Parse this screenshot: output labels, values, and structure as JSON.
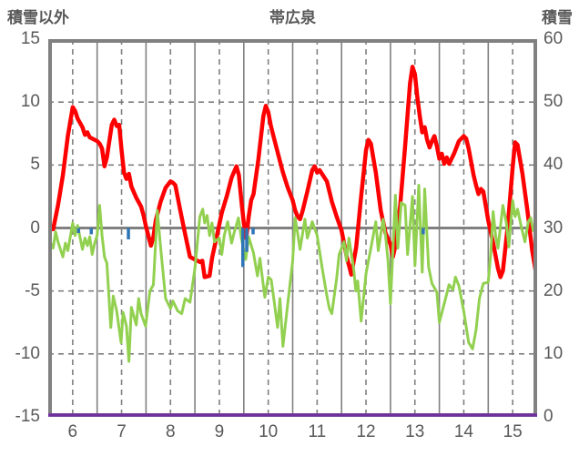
{
  "header": {
    "left_axis_title": "積雪以外",
    "chart_title": "帯広泉",
    "right_axis_title": "積雪"
  },
  "colors": {
    "text": "#595959",
    "grid": "#808080",
    "frame": "#808080",
    "zero_line": "#808080",
    "red_series": "#ff0000",
    "green_series": "#92d050",
    "blue_series": "#2e75b6",
    "purple_series": "#7030a0",
    "background": "#ffffff"
  },
  "chart_data": {
    "type": "line",
    "title": "帯広泉",
    "left_axis": {
      "label": "積雪以外",
      "min": -15,
      "max": 15,
      "ticks": [
        15,
        10,
        5,
        0,
        -5,
        -10,
        -15
      ]
    },
    "right_axis": {
      "label": "積雪",
      "min": 0,
      "max": 60,
      "ticks": [
        60,
        50,
        40,
        30,
        20,
        10,
        0
      ]
    },
    "x_axis": {
      "min": 6,
      "max": 16,
      "tick_labels": [
        "6",
        "7",
        "8",
        "9",
        "10",
        "11",
        "12",
        "13",
        "14",
        "15"
      ],
      "tick_positions": [
        6.5,
        7.5,
        8.5,
        9.5,
        10.5,
        11.5,
        12.5,
        13.5,
        14.5,
        15.5
      ]
    },
    "grid": {
      "vertical_solid_days": [
        7,
        8,
        9,
        10,
        11,
        12,
        13,
        14,
        15
      ],
      "vertical_dashed_days": [
        6.5,
        7.5,
        8.5,
        9.5,
        10.5,
        11.5,
        12.5,
        13.5,
        14.5,
        15.5
      ],
      "horizontal_dashed_values": [
        10,
        5,
        -5,
        -10
      ],
      "zero_line_value": 0,
      "grid_on": true,
      "legend": "none"
    },
    "series": [
      {
        "name": "red-line",
        "style": "line",
        "color": "#ff0000",
        "axis": "left",
        "width": 4.5,
        "points": [
          [
            6.0,
            0.6
          ],
          [
            6.05,
            0.1
          ],
          [
            6.1,
            -0.1
          ],
          [
            6.2,
            1.8
          ],
          [
            6.3,
            4.2
          ],
          [
            6.4,
            7.3
          ],
          [
            6.5,
            9.6
          ],
          [
            6.55,
            9.3
          ],
          [
            6.6,
            8.7
          ],
          [
            6.7,
            8.0
          ],
          [
            6.75,
            7.4
          ],
          [
            6.8,
            7.6
          ],
          [
            6.85,
            7.2
          ],
          [
            6.9,
            7.1
          ],
          [
            7.0,
            6.9
          ],
          [
            7.05,
            6.7
          ],
          [
            7.1,
            6.3
          ],
          [
            7.15,
            4.9
          ],
          [
            7.2,
            5.6
          ],
          [
            7.3,
            8.2
          ],
          [
            7.35,
            8.6
          ],
          [
            7.4,
            8.1
          ],
          [
            7.45,
            8.2
          ],
          [
            7.5,
            6.2
          ],
          [
            7.55,
            4.4
          ],
          [
            7.6,
            3.9
          ],
          [
            7.65,
            4.3
          ],
          [
            7.7,
            3.3
          ],
          [
            7.8,
            2.4
          ],
          [
            7.9,
            1.7
          ],
          [
            7.95,
            1.0
          ],
          [
            8.0,
            0.1
          ],
          [
            8.1,
            -1.4
          ],
          [
            8.15,
            -0.7
          ],
          [
            8.2,
            0.6
          ],
          [
            8.3,
            2.1
          ],
          [
            8.4,
            3.2
          ],
          [
            8.5,
            3.7
          ],
          [
            8.55,
            3.6
          ],
          [
            8.6,
            3.4
          ],
          [
            8.7,
            1.4
          ],
          [
            8.8,
            -0.5
          ],
          [
            8.9,
            -2.3
          ],
          [
            9.0,
            -2.5
          ],
          [
            9.1,
            -2.7
          ],
          [
            9.15,
            -2.6
          ],
          [
            9.2,
            -3.9
          ],
          [
            9.3,
            -3.8
          ],
          [
            9.35,
            -2.4
          ],
          [
            9.45,
            -0.6
          ],
          [
            9.55,
            1.2
          ],
          [
            9.65,
            2.5
          ],
          [
            9.75,
            4.0
          ],
          [
            9.85,
            4.9
          ],
          [
            9.9,
            4.2
          ],
          [
            9.95,
            2.2
          ],
          [
            10.0,
            0.4
          ],
          [
            10.05,
            -0.8
          ],
          [
            10.1,
            0.9
          ],
          [
            10.15,
            2.2
          ],
          [
            10.2,
            2.7
          ],
          [
            10.3,
            5.5
          ],
          [
            10.4,
            8.9
          ],
          [
            10.45,
            9.7
          ],
          [
            10.5,
            9.2
          ],
          [
            10.55,
            8.2
          ],
          [
            10.6,
            7.4
          ],
          [
            10.7,
            5.9
          ],
          [
            10.8,
            4.4
          ],
          [
            10.9,
            3.2
          ],
          [
            11.0,
            2.2
          ],
          [
            11.05,
            1.4
          ],
          [
            11.1,
            0.9
          ],
          [
            11.15,
            0.7
          ],
          [
            11.2,
            1.3
          ],
          [
            11.3,
            2.9
          ],
          [
            11.4,
            4.6
          ],
          [
            11.45,
            4.9
          ],
          [
            11.5,
            4.4
          ],
          [
            11.55,
            4.6
          ],
          [
            11.6,
            4.3
          ],
          [
            11.7,
            3.7
          ],
          [
            11.8,
            2.1
          ],
          [
            11.9,
            0.9
          ],
          [
            12.0,
            -0.2
          ],
          [
            12.1,
            -2.2
          ],
          [
            12.2,
            -3.7
          ],
          [
            12.3,
            -1.5
          ],
          [
            12.4,
            2.5
          ],
          [
            12.5,
            6.2
          ],
          [
            12.55,
            7.0
          ],
          [
            12.6,
            6.7
          ],
          [
            12.7,
            4.4
          ],
          [
            12.8,
            1.4
          ],
          [
            12.9,
            -0.4
          ],
          [
            13.0,
            -1.3
          ],
          [
            13.05,
            -2.3
          ],
          [
            13.1,
            -1.4
          ],
          [
            13.2,
            1.8
          ],
          [
            13.3,
            6.5
          ],
          [
            13.4,
            11.5
          ],
          [
            13.45,
            12.8
          ],
          [
            13.5,
            12.2
          ],
          [
            13.55,
            10.4
          ],
          [
            13.6,
            8.9
          ],
          [
            13.65,
            7.6
          ],
          [
            13.7,
            8.0
          ],
          [
            13.75,
            7.0
          ],
          [
            13.8,
            6.4
          ],
          [
            13.85,
            6.9
          ],
          [
            13.9,
            7.3
          ],
          [
            13.95,
            6.5
          ],
          [
            14.0,
            5.5
          ],
          [
            14.05,
            5.9
          ],
          [
            14.1,
            5.1
          ],
          [
            14.15,
            5.6
          ],
          [
            14.2,
            5.1
          ],
          [
            14.3,
            5.9
          ],
          [
            14.4,
            6.9
          ],
          [
            14.5,
            7.3
          ],
          [
            14.55,
            7.1
          ],
          [
            14.6,
            6.3
          ],
          [
            14.7,
            4.2
          ],
          [
            14.75,
            3.4
          ],
          [
            14.8,
            2.7
          ],
          [
            14.85,
            3.1
          ],
          [
            14.9,
            2.9
          ],
          [
            15.0,
            0.6
          ],
          [
            15.1,
            -1.2
          ],
          [
            15.2,
            -3.2
          ],
          [
            15.25,
            -3.9
          ],
          [
            15.3,
            -3.4
          ],
          [
            15.4,
            0.2
          ],
          [
            15.5,
            4.8
          ],
          [
            15.55,
            6.8
          ],
          [
            15.6,
            6.6
          ],
          [
            15.7,
            4.3
          ],
          [
            15.8,
            1.4
          ],
          [
            15.9,
            -1.8
          ],
          [
            16.0,
            -4.1
          ]
        ]
      },
      {
        "name": "green-line",
        "style": "line",
        "color": "#92d050",
        "axis": "left",
        "width": 3,
        "points": [
          [
            6.0,
            -0.4
          ],
          [
            6.05,
            -1.2
          ],
          [
            6.1,
            -1.6
          ],
          [
            6.15,
            -0.3
          ],
          [
            6.2,
            -1.1
          ],
          [
            6.3,
            -2.3
          ],
          [
            6.35,
            -1.2
          ],
          [
            6.4,
            -1.8
          ],
          [
            6.5,
            0.4
          ],
          [
            6.55,
            -0.6
          ],
          [
            6.6,
            0.2
          ],
          [
            6.7,
            -1.7
          ],
          [
            6.75,
            -0.8
          ],
          [
            6.8,
            -1.4
          ],
          [
            6.85,
            -0.7
          ],
          [
            6.9,
            -2.1
          ],
          [
            6.95,
            -1.2
          ],
          [
            7.0,
            -0.6
          ],
          [
            7.05,
            1.8
          ],
          [
            7.1,
            -0.6
          ],
          [
            7.15,
            -2.3
          ],
          [
            7.2,
            -2.8
          ],
          [
            7.28,
            -7.9
          ],
          [
            7.33,
            -5.4
          ],
          [
            7.4,
            -6.6
          ],
          [
            7.49,
            -9.1
          ],
          [
            7.53,
            -6.7
          ],
          [
            7.6,
            -7.8
          ],
          [
            7.65,
            -10.6
          ],
          [
            7.7,
            -6.3
          ],
          [
            7.75,
            -7.0
          ],
          [
            7.8,
            -7.7
          ],
          [
            7.85,
            -5.6
          ],
          [
            7.9,
            -6.8
          ],
          [
            7.99,
            -7.8
          ],
          [
            8.08,
            -5.0
          ],
          [
            8.15,
            -4.5
          ],
          [
            8.23,
            1.4
          ],
          [
            8.3,
            -1.6
          ],
          [
            8.4,
            -5.6
          ],
          [
            8.5,
            -6.4
          ],
          [
            8.55,
            -5.8
          ],
          [
            8.65,
            -6.6
          ],
          [
            8.73,
            -6.8
          ],
          [
            8.8,
            -5.6
          ],
          [
            8.9,
            -5.9
          ],
          [
            9.0,
            -3.2
          ],
          [
            9.1,
            0.9
          ],
          [
            9.16,
            1.5
          ],
          [
            9.2,
            0.4
          ],
          [
            9.25,
            1.0
          ],
          [
            9.3,
            -0.6
          ],
          [
            9.35,
            0.4
          ],
          [
            9.4,
            -1.1
          ],
          [
            9.5,
            -0.8
          ],
          [
            9.55,
            -2.1
          ],
          [
            9.6,
            -0.6
          ],
          [
            9.67,
            0.5
          ],
          [
            9.75,
            -1.2
          ],
          [
            9.8,
            -0.4
          ],
          [
            9.89,
            0.8
          ],
          [
            9.95,
            -0.8
          ],
          [
            10.04,
            -2.5
          ],
          [
            10.1,
            -0.7
          ],
          [
            10.2,
            -2.0
          ],
          [
            10.28,
            -3.8
          ],
          [
            10.33,
            -2.4
          ],
          [
            10.43,
            -5.5
          ],
          [
            10.5,
            -3.9
          ],
          [
            10.56,
            -4.1
          ],
          [
            10.62,
            -5.8
          ],
          [
            10.69,
            -7.9
          ],
          [
            10.74,
            -5.6
          ],
          [
            10.8,
            -9.4
          ],
          [
            10.9,
            -6.0
          ],
          [
            11.0,
            -2.6
          ],
          [
            11.05,
            0.8
          ],
          [
            11.1,
            -0.4
          ],
          [
            11.15,
            -1.7
          ],
          [
            11.25,
            0.7
          ],
          [
            11.3,
            -0.8
          ],
          [
            11.4,
            0.5
          ],
          [
            11.5,
            -0.6
          ],
          [
            11.6,
            -3.1
          ],
          [
            11.7,
            -5.4
          ],
          [
            11.75,
            -6.4
          ],
          [
            11.8,
            -6.8
          ],
          [
            11.9,
            -4.0
          ],
          [
            11.95,
            -2.1
          ],
          [
            12.05,
            -1.1
          ],
          [
            12.1,
            -2.6
          ],
          [
            12.15,
            -0.8
          ],
          [
            12.25,
            -3.3
          ],
          [
            12.29,
            -5.0
          ],
          [
            12.33,
            -4.2
          ],
          [
            12.4,
            -7.4
          ],
          [
            12.5,
            -3.6
          ],
          [
            12.6,
            -1.6
          ],
          [
            12.7,
            0.5
          ],
          [
            12.75,
            -1.8
          ],
          [
            12.85,
            0.7
          ],
          [
            12.9,
            -0.6
          ],
          [
            12.95,
            -2.6
          ],
          [
            13.0,
            -6.0
          ],
          [
            13.1,
            2.6
          ],
          [
            13.15,
            -1.6
          ],
          [
            13.22,
            2.0
          ],
          [
            13.3,
            1.8
          ],
          [
            13.35,
            -2.1
          ],
          [
            13.45,
            2.5
          ],
          [
            13.5,
            -3.0
          ],
          [
            13.58,
            3.4
          ],
          [
            13.65,
            -3.5
          ],
          [
            13.7,
            3.1
          ],
          [
            13.78,
            -3.1
          ],
          [
            13.85,
            -4.4
          ],
          [
            13.95,
            -5.1
          ],
          [
            14.0,
            -7.5
          ],
          [
            14.1,
            -6.0
          ],
          [
            14.2,
            -4.5
          ],
          [
            14.28,
            -4.9
          ],
          [
            14.33,
            -3.9
          ],
          [
            14.4,
            -4.6
          ],
          [
            14.5,
            -6.6
          ],
          [
            14.6,
            -9.1
          ],
          [
            14.68,
            -9.6
          ],
          [
            14.75,
            -8.1
          ],
          [
            14.82,
            -5.6
          ],
          [
            14.9,
            -4.4
          ],
          [
            15.0,
            -4.3
          ],
          [
            15.05,
            -2.1
          ],
          [
            15.1,
            1.3
          ],
          [
            15.15,
            -0.6
          ],
          [
            15.2,
            -1.6
          ],
          [
            15.3,
            1.8
          ],
          [
            15.37,
            0.4
          ],
          [
            15.42,
            -1.5
          ],
          [
            15.5,
            2.2
          ],
          [
            15.55,
            0.9
          ],
          [
            15.6,
            1.5
          ],
          [
            15.67,
            0.2
          ],
          [
            15.75,
            -1.1
          ],
          [
            15.82,
            0.5
          ],
          [
            15.87,
            0.8
          ],
          [
            15.92,
            -0.2
          ],
          [
            16.0,
            0.5
          ]
        ]
      },
      {
        "name": "blue-bars",
        "style": "bar",
        "color": "#2e75b6",
        "axis": "left",
        "bar_width": 3.5,
        "points": [
          [
            6.62,
            -0.4
          ],
          [
            6.88,
            -0.5
          ],
          [
            7.64,
            -0.9
          ],
          [
            9.98,
            -3.1
          ],
          [
            10.06,
            -1.9
          ],
          [
            10.19,
            -0.5
          ],
          [
            13.67,
            -0.5
          ]
        ]
      },
      {
        "name": "purple-line",
        "style": "line",
        "color": "#7030a0",
        "axis": "right",
        "width": 3.5,
        "points": [
          [
            6.0,
            0
          ],
          [
            16.0,
            0
          ]
        ]
      }
    ]
  }
}
